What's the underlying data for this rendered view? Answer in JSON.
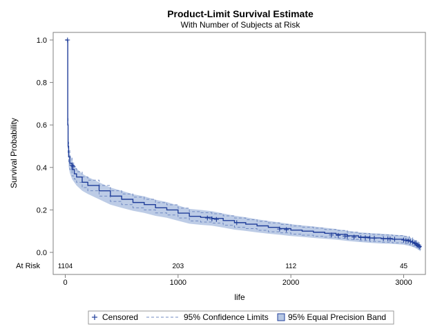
{
  "chart_data": {
    "type": "line",
    "title": "Product-Limit Survival Estimate",
    "subtitle": "With Number of Subjects at Risk",
    "xlabel": "life",
    "ylabel": "Survival Probability",
    "xlim": [
      -100,
      3200
    ],
    "ylim": [
      -0.03,
      1.03
    ],
    "x_ticks": [
      0,
      1000,
      2000,
      3000
    ],
    "x_tick_labels": [
      "0",
      "1000",
      "2000",
      "3000"
    ],
    "y_ticks": [
      0.0,
      0.2,
      0.4,
      0.6,
      0.8,
      1.0
    ],
    "y_tick_labels": [
      "0.0",
      "0.2",
      "0.4",
      "0.6",
      "0.8",
      "1.0"
    ],
    "grid": false,
    "at_risk": {
      "label": "At Risk",
      "x": [
        0,
        1000,
        2000,
        3000
      ],
      "counts": [
        "1104",
        "203",
        "112",
        "45"
      ]
    },
    "series": [
      {
        "name": "Survival estimate",
        "x": [
          0,
          20,
          22,
          25,
          30,
          40,
          60,
          80,
          100,
          150,
          200,
          300,
          400,
          500,
          600,
          700,
          800,
          900,
          1000,
          1100,
          1200,
          1300,
          1400,
          1500,
          1600,
          1700,
          1800,
          1900,
          2000,
          2100,
          2200,
          2300,
          2400,
          2500,
          2600,
          2700,
          2800,
          2900,
          3000,
          3050,
          3080,
          3100,
          3130,
          3150
        ],
        "y": [
          1.0,
          1.0,
          0.6,
          0.5,
          0.45,
          0.42,
          0.39,
          0.37,
          0.355,
          0.33,
          0.315,
          0.29,
          0.265,
          0.25,
          0.235,
          0.225,
          0.21,
          0.2,
          0.185,
          0.17,
          0.165,
          0.16,
          0.15,
          0.14,
          0.133,
          0.125,
          0.118,
          0.112,
          0.105,
          0.1,
          0.095,
          0.09,
          0.085,
          0.078,
          0.072,
          0.068,
          0.065,
          0.062,
          0.058,
          0.052,
          0.045,
          0.04,
          0.03,
          0.02
        ]
      }
    ],
    "confidence_limits": {
      "name": "95% Confidence Limits",
      "lower": [
        1.0,
        1.0,
        0.57,
        0.47,
        0.42,
        0.39,
        0.36,
        0.345,
        0.33,
        0.305,
        0.29,
        0.265,
        0.24,
        0.225,
        0.21,
        0.2,
        0.186,
        0.176,
        0.162,
        0.148,
        0.143,
        0.138,
        0.128,
        0.118,
        0.112,
        0.104,
        0.097,
        0.092,
        0.086,
        0.081,
        0.076,
        0.072,
        0.067,
        0.061,
        0.055,
        0.051,
        0.048,
        0.045,
        0.041,
        0.036,
        0.03,
        0.025,
        0.015,
        0.006
      ],
      "upper": [
        1.0,
        1.0,
        0.63,
        0.53,
        0.48,
        0.45,
        0.42,
        0.395,
        0.38,
        0.355,
        0.34,
        0.315,
        0.29,
        0.275,
        0.26,
        0.25,
        0.234,
        0.224,
        0.208,
        0.192,
        0.187,
        0.182,
        0.172,
        0.162,
        0.154,
        0.146,
        0.139,
        0.132,
        0.124,
        0.119,
        0.114,
        0.108,
        0.103,
        0.095,
        0.089,
        0.085,
        0.082,
        0.079,
        0.075,
        0.068,
        0.06,
        0.055,
        0.045,
        0.034
      ]
    },
    "equal_precision_band": {
      "name": "95% Equal Precision Band",
      "x": [
        30,
        40,
        60,
        80,
        100,
        150,
        200,
        300,
        400,
        500,
        600,
        700,
        800,
        900,
        1000,
        1100,
        1200,
        1300,
        1400,
        1500,
        1600,
        1700,
        1800,
        1900,
        2000,
        2100,
        2200,
        2300,
        2400,
        2500,
        2600,
        2700,
        2800,
        2900,
        3000,
        3050,
        3080,
        3100,
        3130,
        3150
      ],
      "lower": [
        0.405,
        0.375,
        0.345,
        0.33,
        0.315,
        0.29,
        0.275,
        0.25,
        0.225,
        0.21,
        0.196,
        0.186,
        0.172,
        0.163,
        0.149,
        0.135,
        0.13,
        0.126,
        0.117,
        0.107,
        0.101,
        0.094,
        0.088,
        0.083,
        0.077,
        0.073,
        0.068,
        0.064,
        0.06,
        0.054,
        0.049,
        0.045,
        0.042,
        0.04,
        0.036,
        0.031,
        0.026,
        0.021,
        0.012,
        0.005
      ],
      "upper": [
        0.495,
        0.465,
        0.435,
        0.41,
        0.395,
        0.37,
        0.355,
        0.33,
        0.305,
        0.29,
        0.274,
        0.264,
        0.248,
        0.237,
        0.221,
        0.205,
        0.2,
        0.194,
        0.183,
        0.173,
        0.165,
        0.156,
        0.148,
        0.141,
        0.133,
        0.127,
        0.122,
        0.116,
        0.11,
        0.102,
        0.095,
        0.091,
        0.088,
        0.084,
        0.08,
        0.073,
        0.064,
        0.059,
        0.048,
        0.036
      ]
    },
    "censored": {
      "name": "Censored",
      "x": [
        20,
        60,
        70,
        1260,
        1300,
        1340,
        1520,
        1900,
        1960,
        2360,
        2420,
        2480,
        2500,
        2560,
        2620,
        2660,
        2700,
        2740,
        2820,
        2860,
        2880,
        2920,
        3000,
        3020,
        3040,
        3060,
        3080,
        3100,
        3110,
        3120,
        3130,
        3140
      ],
      "y": [
        1.0,
        0.41,
        0.405,
        0.162,
        0.158,
        0.155,
        0.14,
        0.11,
        0.107,
        0.082,
        0.08,
        0.077,
        0.076,
        0.072,
        0.07,
        0.069,
        0.068,
        0.067,
        0.064,
        0.064,
        0.063,
        0.062,
        0.058,
        0.056,
        0.054,
        0.052,
        0.048,
        0.043,
        0.04,
        0.035,
        0.031,
        0.028
      ]
    },
    "legend": {
      "position": "bottom",
      "items": [
        "Censored",
        "95% Confidence Limits",
        "95% Equal Precision Band"
      ]
    },
    "colors": {
      "line": "#1f3d99",
      "band_fill": "#b6c7e3",
      "band_stroke": "#6f88c2",
      "frame": "#7f7f7f"
    }
  }
}
